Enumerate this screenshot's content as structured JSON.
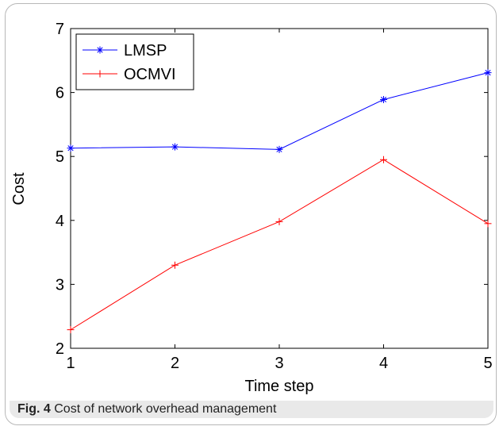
{
  "caption": {
    "label": "Fig. 4",
    "text": "Cost of network overhead management"
  },
  "chart_data": {
    "type": "line",
    "title": "",
    "xlabel": "Time step",
    "ylabel": "Cost",
    "xlim": [
      1,
      5
    ],
    "ylim": [
      2,
      7
    ],
    "x_ticks": [
      "1",
      "2",
      "3",
      "4",
      "5"
    ],
    "y_ticks": [
      "2",
      "3",
      "4",
      "5",
      "6",
      "7"
    ],
    "x": [
      1,
      2,
      3,
      4,
      5
    ],
    "grid": false,
    "legend_position": "top-left",
    "series": [
      {
        "name": "LMSP",
        "values": [
          5.13,
          5.15,
          5.11,
          5.89,
          6.31
        ],
        "color": "#0000ff",
        "marker": "asterisk"
      },
      {
        "name": "OCMVI",
        "values": [
          2.29,
          3.3,
          3.98,
          4.95,
          3.95
        ],
        "color": "#ff0000",
        "marker": "plus"
      }
    ]
  }
}
